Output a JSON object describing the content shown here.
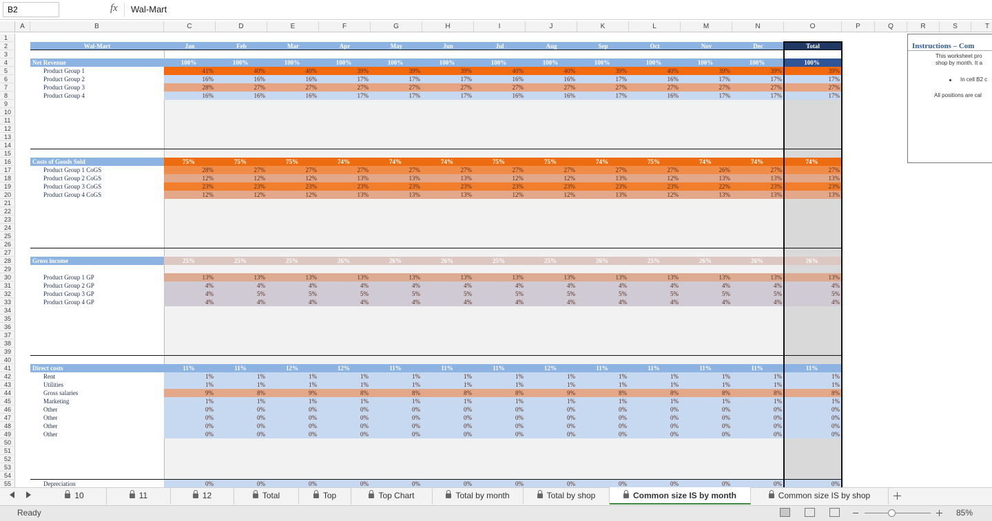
{
  "formula_bar": {
    "name_box": "B2",
    "fx": "fx",
    "content": "Wal-Mart"
  },
  "column_headers": [
    "A",
    "B",
    "C",
    "D",
    "E",
    "F",
    "G",
    "H",
    "I",
    "J",
    "K",
    "L",
    "M",
    "N",
    "O",
    "P",
    "Q",
    "R",
    "S",
    "T"
  ],
  "row_numbers": [
    1,
    2,
    3,
    4,
    5,
    6,
    7,
    8,
    9,
    10,
    11,
    12,
    13,
    14,
    15,
    16,
    17,
    18,
    19,
    20,
    21,
    22,
    23,
    24,
    25,
    26,
    27,
    28,
    29,
    30,
    31,
    32,
    33,
    34,
    35,
    36,
    37,
    38,
    39,
    40,
    41,
    42,
    43,
    44,
    45,
    46,
    47,
    48,
    49,
    50,
    51,
    52,
    53,
    54,
    55
  ],
  "table": {
    "title": "Wal-Mart",
    "months": [
      "Jan",
      "Feb",
      "Mar",
      "Apr",
      "May",
      "Jun",
      "Jul",
      "Aug",
      "Sep",
      "Oct",
      "Nov",
      "Dec",
      "Total"
    ],
    "rows": [
      {
        "label": "Net Revenue",
        "values": [
          "100%",
          "100%",
          "100%",
          "100%",
          "100%",
          "100%",
          "100%",
          "100%",
          "100%",
          "100%",
          "100%",
          "100%",
          "100%"
        ]
      },
      {
        "label": "Product Group 1",
        "values": [
          "41%",
          "40%",
          "40%",
          "39%",
          "39%",
          "39%",
          "40%",
          "40%",
          "39%",
          "40%",
          "39%",
          "39%",
          "39%"
        ]
      },
      {
        "label": "Product Group 2",
        "values": [
          "16%",
          "16%",
          "16%",
          "17%",
          "17%",
          "17%",
          "16%",
          "16%",
          "17%",
          "16%",
          "17%",
          "17%",
          "17%"
        ]
      },
      {
        "label": "Product Group 3",
        "values": [
          "28%",
          "27%",
          "27%",
          "27%",
          "27%",
          "27%",
          "27%",
          "27%",
          "27%",
          "27%",
          "27%",
          "27%",
          "27%"
        ]
      },
      {
        "label": "Product Group 4",
        "values": [
          "16%",
          "16%",
          "16%",
          "17%",
          "17%",
          "17%",
          "16%",
          "16%",
          "17%",
          "16%",
          "17%",
          "17%",
          "17%"
        ]
      },
      {
        "label": "Costs of Goods Sold",
        "values": [
          "75%",
          "75%",
          "75%",
          "74%",
          "74%",
          "74%",
          "75%",
          "75%",
          "74%",
          "75%",
          "74%",
          "74%",
          "74%"
        ]
      },
      {
        "label": "Product Group 1 CoGS",
        "values": [
          "28%",
          "27%",
          "27%",
          "27%",
          "27%",
          "27%",
          "27%",
          "27%",
          "27%",
          "27%",
          "26%",
          "27%",
          "27%"
        ]
      },
      {
        "label": "Product Group 2 CoGS",
        "values": [
          "12%",
          "12%",
          "12%",
          "13%",
          "13%",
          "13%",
          "12%",
          "12%",
          "13%",
          "12%",
          "13%",
          "13%",
          "13%"
        ]
      },
      {
        "label": "Product Group 3 CoGS",
        "values": [
          "23%",
          "23%",
          "23%",
          "23%",
          "23%",
          "23%",
          "23%",
          "23%",
          "23%",
          "23%",
          "22%",
          "23%",
          "23%"
        ]
      },
      {
        "label": "Product Group 4 CoGS",
        "values": [
          "12%",
          "12%",
          "12%",
          "13%",
          "13%",
          "13%",
          "12%",
          "12%",
          "13%",
          "12%",
          "13%",
          "13%",
          "13%"
        ]
      },
      {
        "label": "Gross income",
        "values": [
          "25%",
          "25%",
          "25%",
          "26%",
          "26%",
          "26%",
          "25%",
          "25%",
          "26%",
          "25%",
          "26%",
          "26%",
          "26%"
        ]
      },
      {
        "label": "Product Group 1 GP",
        "values": [
          "13%",
          "13%",
          "13%",
          "13%",
          "13%",
          "13%",
          "13%",
          "13%",
          "13%",
          "13%",
          "13%",
          "13%",
          "13%"
        ]
      },
      {
        "label": "Product Group 2 GP",
        "values": [
          "4%",
          "4%",
          "4%",
          "4%",
          "4%",
          "4%",
          "4%",
          "4%",
          "4%",
          "4%",
          "4%",
          "4%",
          "4%"
        ]
      },
      {
        "label": "Product Group 3 GP",
        "values": [
          "4%",
          "5%",
          "5%",
          "5%",
          "5%",
          "5%",
          "5%",
          "5%",
          "5%",
          "5%",
          "5%",
          "5%",
          "5%"
        ]
      },
      {
        "label": "Product Group 4 GP",
        "values": [
          "4%",
          "4%",
          "4%",
          "4%",
          "4%",
          "4%",
          "4%",
          "4%",
          "4%",
          "4%",
          "4%",
          "4%",
          "4%"
        ]
      },
      {
        "label": "Direct costs",
        "values": [
          "11%",
          "11%",
          "12%",
          "12%",
          "11%",
          "11%",
          "11%",
          "12%",
          "11%",
          "11%",
          "11%",
          "11%",
          "11%"
        ]
      },
      {
        "label": "Rent",
        "values": [
          "1%",
          "1%",
          "1%",
          "1%",
          "1%",
          "1%",
          "1%",
          "1%",
          "1%",
          "1%",
          "1%",
          "1%",
          "1%"
        ]
      },
      {
        "label": "Utilities",
        "values": [
          "1%",
          "1%",
          "1%",
          "1%",
          "1%",
          "1%",
          "1%",
          "1%",
          "1%",
          "1%",
          "1%",
          "1%",
          "1%"
        ]
      },
      {
        "label": "Gross salaries",
        "values": [
          "9%",
          "8%",
          "9%",
          "8%",
          "8%",
          "8%",
          "8%",
          "9%",
          "8%",
          "8%",
          "8%",
          "8%",
          "8%"
        ]
      },
      {
        "label": "Marketing",
        "values": [
          "1%",
          "1%",
          "1%",
          "1%",
          "1%",
          "1%",
          "1%",
          "1%",
          "1%",
          "1%",
          "1%",
          "1%",
          "1%"
        ]
      },
      {
        "label": "Other",
        "values": [
          "0%",
          "0%",
          "0%",
          "0%",
          "0%",
          "0%",
          "0%",
          "0%",
          "0%",
          "0%",
          "0%",
          "0%",
          "0%"
        ]
      },
      {
        "label": "Other",
        "values": [
          "0%",
          "0%",
          "0%",
          "0%",
          "0%",
          "0%",
          "0%",
          "0%",
          "0%",
          "0%",
          "0%",
          "0%",
          "0%"
        ]
      },
      {
        "label": "Other",
        "values": [
          "0%",
          "0%",
          "0%",
          "0%",
          "0%",
          "0%",
          "0%",
          "0%",
          "0%",
          "0%",
          "0%",
          "0%",
          "0%"
        ]
      },
      {
        "label": "Other",
        "values": [
          "0%",
          "0%",
          "0%",
          "0%",
          "0%",
          "0%",
          "0%",
          "0%",
          "0%",
          "0%",
          "0%",
          "0%",
          "0%"
        ]
      },
      {
        "label": "Depreciation",
        "values": [
          "0%",
          "0%",
          "0%",
          "0%",
          "0%",
          "0%",
          "0%",
          "0%",
          "0%",
          "0%",
          "0%",
          "0%",
          "0%"
        ]
      }
    ]
  },
  "instructions": {
    "title": "Instructions – Com",
    "lines": [
      "This worksheet pro",
      "shop by month. It a"
    ],
    "bullet": "In cell B2 c",
    "note": "All positions are cal"
  },
  "sheet_tabs": [
    "10",
    "11",
    "12",
    "Total",
    "Top",
    "Top Chart",
    "Total by month",
    "Total by shop",
    "Common size IS by month",
    "Common size IS by shop"
  ],
  "active_tab": "Common size IS by month",
  "status": {
    "text": "Ready",
    "zoom": "85%"
  }
}
